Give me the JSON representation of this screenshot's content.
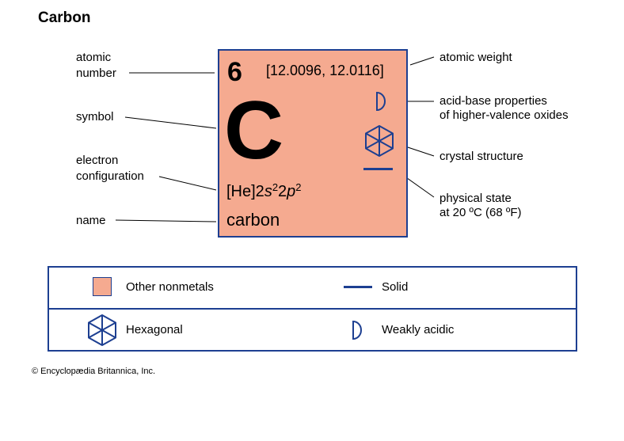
{
  "title": "Carbon",
  "element": {
    "atomic_number": "6",
    "atomic_weight": "[12.0096, 12.0116]",
    "symbol": "C",
    "config_core": "[He]2",
    "config_s": "s",
    "config_s_sup": "2",
    "config_mid": "2",
    "config_p": "p",
    "config_p_sup": "2",
    "name": "carbon"
  },
  "labels": {
    "atomic_number_1": "atomic",
    "atomic_number_2": "number",
    "symbol": "symbol",
    "electron_config_1": "electron",
    "electron_config_2": "configuration",
    "name": "name",
    "atomic_weight": "atomic weight",
    "acid_base_1": "acid-base properties",
    "acid_base_2": "of higher-valence oxides",
    "crystal_structure": "crystal structure",
    "physical_state_1": "physical state",
    "physical_state_2": "at 20 ºC (68 ºF)"
  },
  "legend": {
    "category": "Other nonmetals",
    "state": "Solid",
    "crystal": "Hexagonal",
    "acidity": "Weakly acidic"
  },
  "colors": {
    "tile_fill": "#f5aa90",
    "accent_blue": "#1d3f91"
  },
  "icons": [
    "half-circle-icon",
    "hexagonal-crystal-icon",
    "solid-state-dash-icon"
  ],
  "copyright": "© Encyclopædia Britannica, Inc."
}
